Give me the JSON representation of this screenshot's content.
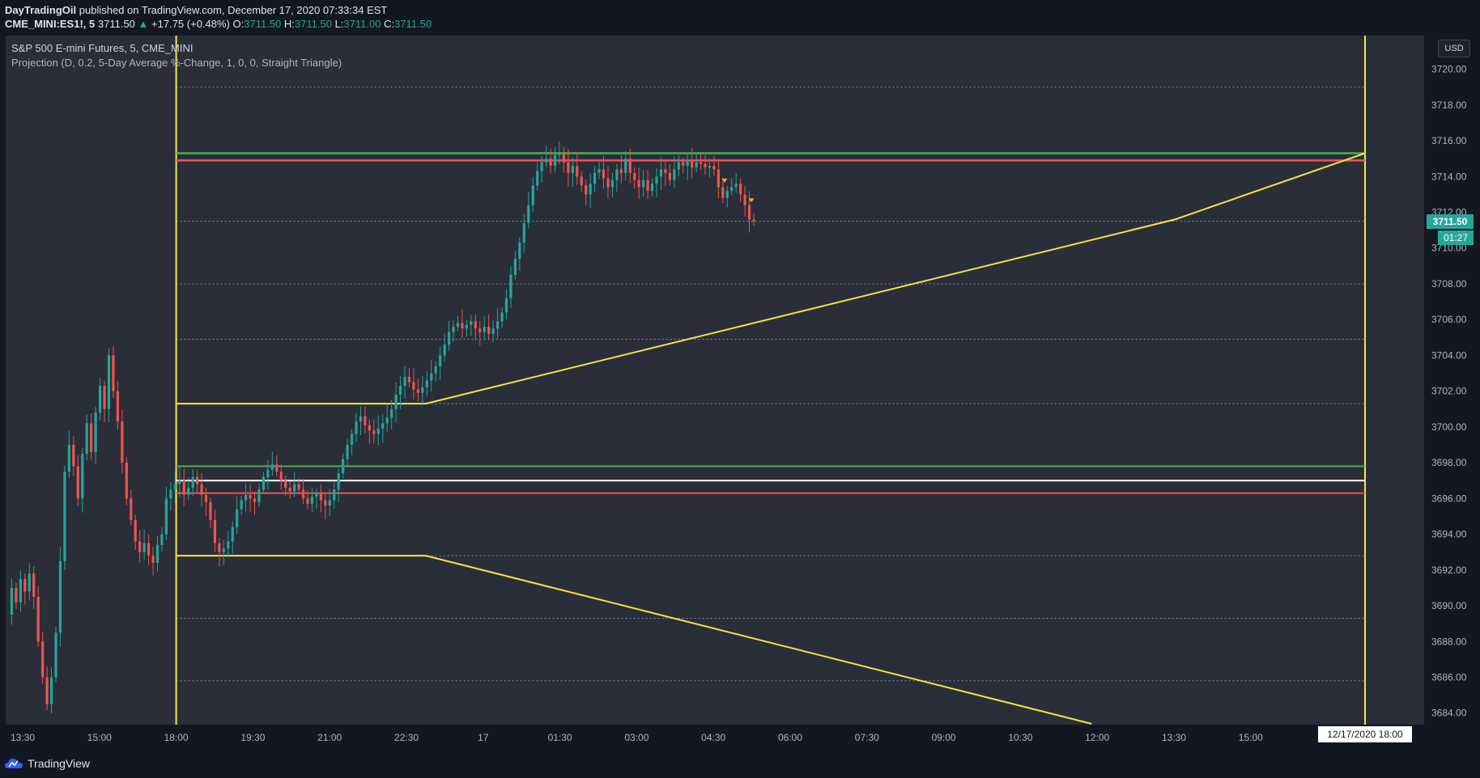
{
  "header": {
    "publisher": "DayTradingOil",
    "published_text": "published on TradingView.com, December 17, 2020 07:33:34 EST",
    "symbol": "CME_MINI:ES1!, 5",
    "last": "3711.50",
    "change": "+17.75 (+0.48%)",
    "o_label": "O:",
    "o_value": "3711.50",
    "h_label": "H:",
    "h_value": "3711.50",
    "l_label": "L:",
    "l_value": "3711.00",
    "c_label": "C:",
    "c_value": "3711.50"
  },
  "legend": {
    "series_title": "S&P 500 E-mini Futures, 5, CME_MINI",
    "indicator": "Projection (D, 0.2, 5-Day Average %-Change, 1, 0, 0, Straight Triangle)"
  },
  "axis": {
    "currency": "USD",
    "price_tag": "3711.50",
    "countdown": "01:27",
    "date_box": "12/17/2020   18:00"
  },
  "footer": {
    "brand": "TradingView"
  },
  "colors": {
    "background": "#131722",
    "pane": "#2a2e39",
    "up": "#26a69a",
    "down": "#ef5350",
    "yellow": "#f5e642",
    "green": "#4caf50",
    "red": "#ef5350",
    "white": "#ffffff"
  },
  "chart_data": {
    "type": "candlestick",
    "y_ticks": [
      3720,
      3718,
      3716,
      3714,
      3712,
      3710,
      3708,
      3706,
      3704,
      3702,
      3700,
      3698,
      3696,
      3694,
      3692,
      3690,
      3688,
      3686,
      3684
    ],
    "y_tick_labels": [
      "3720.00",
      "3718.00",
      "3716.00",
      "3714.00",
      "3712.00",
      "3710.00",
      "3708.00",
      "3706.00",
      "3704.00",
      "3702.00",
      "3700.00",
      "3698.00",
      "3696.00",
      "3694.00",
      "3692.00",
      "3690.00",
      "3688.00",
      "3686.00",
      "3684.00"
    ],
    "ylim": [
      3683.4,
      3721.7
    ],
    "x_ticks": [
      "13:30",
      "15:00",
      "18:00",
      "19:30",
      "21:00",
      "22:30",
      "17",
      "01:30",
      "03:00",
      "04:30",
      "06:00",
      "07:30",
      "09:00",
      "10:30",
      "12:00",
      "13:30",
      "15:00"
    ],
    "dotted_levels": [
      3719.0,
      3711.5,
      3708.0,
      3704.9,
      3701.3,
      3692.8,
      3689.3,
      3685.8
    ],
    "upper_green_level": 3715.3,
    "upper_red_level": 3714.9,
    "mid_green_level": 3697.8,
    "mid_white_level": 3697.0,
    "mid_red_level": 3696.3,
    "session_start_x": "18:00",
    "session_end_x": "12/17/2020 18:00",
    "upper_projection": [
      [
        3701.3,
        0.0
      ],
      [
        3701.3,
        0.21
      ],
      [
        3711.6,
        0.84
      ],
      [
        3715.3,
        1.0
      ]
    ],
    "lower_projection": [
      [
        3692.8,
        0.0
      ],
      [
        3692.8,
        0.21
      ],
      [
        3683.4,
        0.77
      ]
    ],
    "current_price": 3711.5,
    "price_path": [
      3689.5,
      3691.0,
      3690.2,
      3691.5,
      3690.8,
      3691.8,
      3690.5,
      3688.0,
      3686.0,
      3684.5,
      3686.0,
      3688.5,
      3692.5,
      3697.5,
      3699.0,
      3697.8,
      3696.0,
      3698.5,
      3700.2,
      3698.6,
      3700.8,
      3702.3,
      3701.0,
      3704.0,
      3702.0,
      3700.3,
      3698.0,
      3696.0,
      3694.8,
      3693.6,
      3693.0,
      3693.5,
      3692.8,
      3692.4,
      3693.4,
      3694.0,
      3696.0,
      3696.5,
      3696.8,
      3697.0,
      3696.2,
      3696.6,
      3697.2,
      3696.8,
      3696.2,
      3695.8,
      3694.8,
      3693.5,
      3693.0,
      3693.2,
      3693.6,
      3694.4,
      3695.4,
      3695.9,
      3696.2,
      3696.0,
      3695.8,
      3696.5,
      3697.2,
      3697.6,
      3697.9,
      3697.5,
      3697.0,
      3696.6,
      3696.4,
      3696.8,
      3696.5,
      3696.0,
      3695.7,
      3696.1,
      3696.3,
      3695.9,
      3695.6,
      3695.9,
      3696.5,
      3697.4,
      3698.2,
      3699.0,
      3699.6,
      3700.3,
      3700.6,
      3700.1,
      3699.8,
      3699.6,
      3699.9,
      3700.2,
      3700.5,
      3701.0,
      3701.8,
      3702.3,
      3702.8,
      3702.5,
      3702.1,
      3701.9,
      3702.2,
      3702.6,
      3703.0,
      3703.4,
      3704.0,
      3704.6,
      3705.3,
      3705.6,
      3705.8,
      3705.5,
      3705.7,
      3705.9,
      3705.5,
      3705.3,
      3705.6,
      3705.2,
      3705.5,
      3705.9,
      3706.4,
      3707.2,
      3708.5,
      3709.4,
      3710.3,
      3711.4,
      3712.4,
      3713.5,
      3714.3,
      3714.8,
      3715.0,
      3714.6,
      3715.2,
      3715.3,
      3714.8,
      3714.2,
      3714.6,
      3714.0,
      3713.5,
      3713.0,
      3713.6,
      3714.2,
      3714.4,
      3713.9,
      3713.4,
      3713.8,
      3714.4,
      3714.2,
      3715.0,
      3714.2,
      3713.8,
      3713.4,
      3713.8,
      3713.2,
      3713.6,
      3714.0,
      3714.4,
      3714.2,
      3713.8,
      3714.4,
      3714.8,
      3714.6,
      3714.9,
      3714.5,
      3714.8,
      3714.7,
      3714.5,
      3714.6,
      3714.4,
      3713.4,
      3712.8,
      3713.2,
      3713.4,
      3713.6,
      3713.0,
      3712.4,
      3711.6,
      3711.5
    ]
  }
}
